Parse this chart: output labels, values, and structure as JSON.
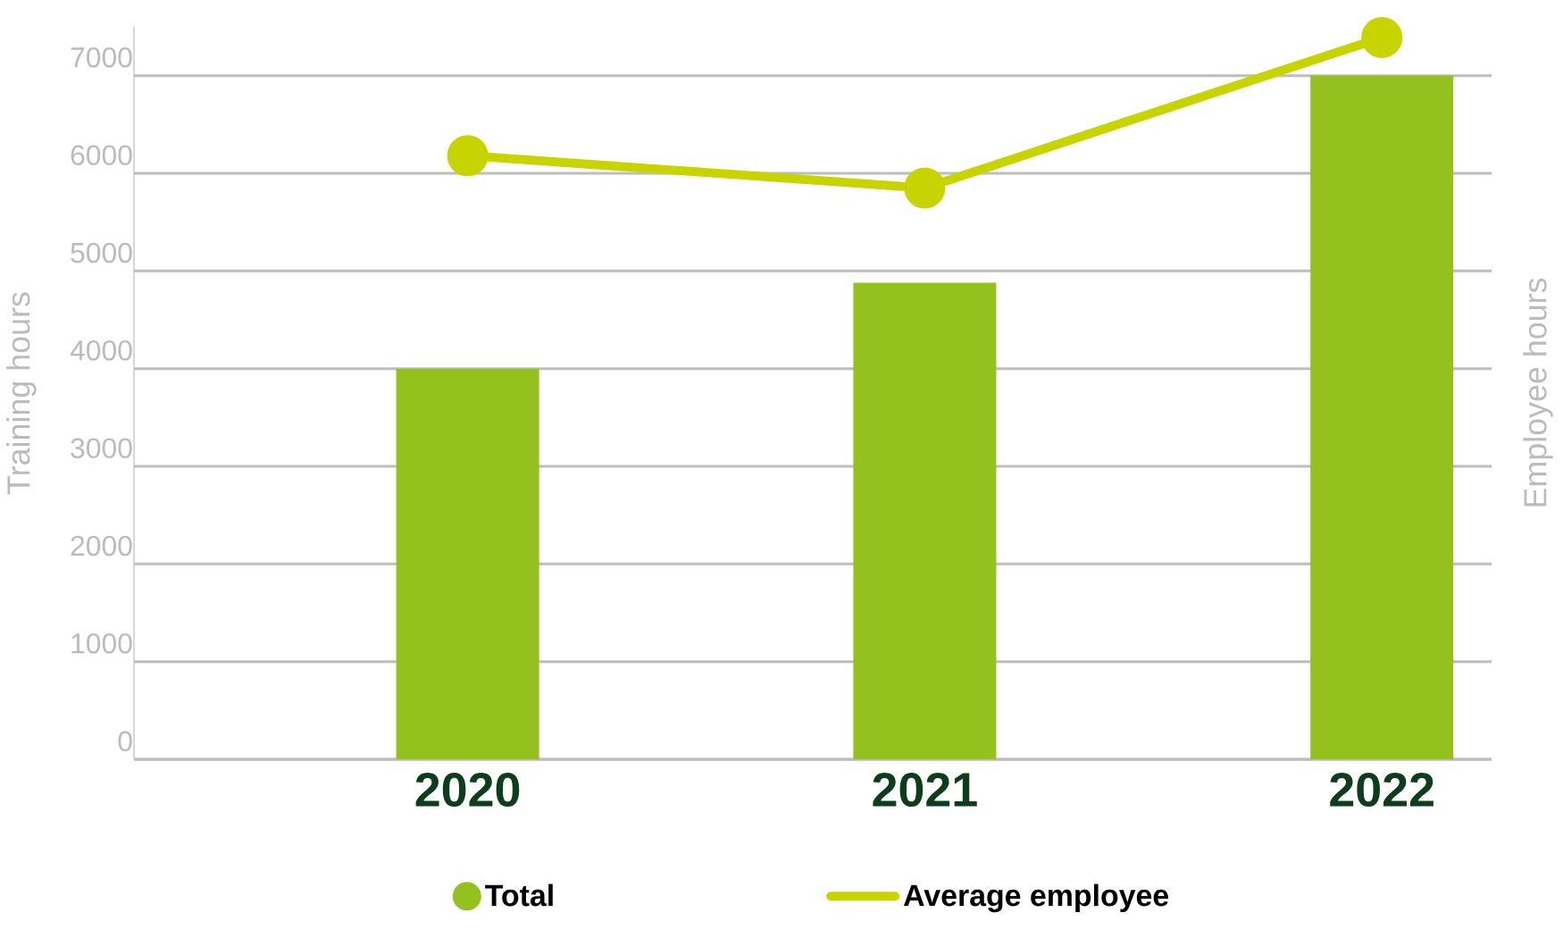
{
  "chart_data": {
    "type": "bar",
    "ylabel": "Training hours",
    "y2label": "Employee hours",
    "categories": [
      "2020",
      "2021",
      "2022"
    ],
    "ylim": [
      0,
      7500
    ],
    "yticks": [
      0,
      1000,
      2000,
      3000,
      4000,
      5000,
      6000,
      7000
    ],
    "grid": "y",
    "legend": "bottom",
    "series": [
      {
        "name": "Total",
        "color": "#95c11f",
        "values": [
          4000,
          4880,
          7000
        ]
      },
      {
        "name": "Average employee",
        "type": "line",
        "color": "#c8d400",
        "marker": "circle",
        "values": [
          6180,
          5850,
          7390
        ]
      }
    ]
  }
}
